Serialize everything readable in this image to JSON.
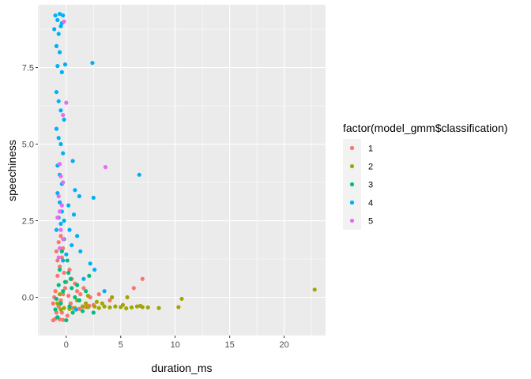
{
  "chart_data": {
    "type": "scatter",
    "title": "",
    "xlabel": "duration_ms",
    "ylabel": "speechiness",
    "xlim": [
      -2.6,
      23.8
    ],
    "ylim": [
      -1.25,
      9.55
    ],
    "xticks": [
      0,
      5,
      10,
      15,
      20
    ],
    "xtick_labels": [
      "0",
      "5",
      "10",
      "15",
      "20"
    ],
    "yticks": [
      0.0,
      2.5,
      5.0,
      7.5
    ],
    "ytick_labels": [
      "0.0",
      "2.5",
      "5.0",
      "7.5"
    ],
    "grid": true,
    "background": "#ebebeb",
    "legend": {
      "title": "factor(model_gmm$classification)",
      "position": "right"
    },
    "series": [
      {
        "name": "1",
        "color": "#F8766D",
        "points": [
          [
            -1.2,
            -0.75
          ],
          [
            -1.0,
            -0.7
          ],
          [
            -0.6,
            -0.72
          ],
          [
            -0.3,
            -0.74
          ],
          [
            -0.9,
            -0.5
          ],
          [
            -0.7,
            -0.3
          ],
          [
            -0.5,
            -0.1
          ],
          [
            -0.3,
            0.1
          ],
          [
            -0.1,
            0.3
          ],
          [
            0.2,
            0.05
          ],
          [
            0.4,
            -0.2
          ],
          [
            0.6,
            -0.35
          ],
          [
            0.9,
            -0.4
          ],
          [
            1.2,
            -0.38
          ],
          [
            1.5,
            -0.3
          ],
          [
            1.8,
            -0.32
          ],
          [
            2.1,
            -0.28
          ],
          [
            2.5,
            -0.25
          ],
          [
            0.5,
            0.6
          ],
          [
            0.8,
            0.45
          ],
          [
            1.0,
            0.2
          ],
          [
            1.3,
            0.1
          ],
          [
            -0.8,
            0.7
          ],
          [
            -0.6,
            1.0
          ],
          [
            -0.4,
            1.3
          ],
          [
            -0.9,
            1.5
          ],
          [
            -0.7,
            1.8
          ],
          [
            -0.5,
            2.0
          ],
          [
            -0.3,
            1.6
          ],
          [
            -0.8,
            1.2
          ],
          [
            -0.2,
            0.8
          ],
          [
            0.0,
            0.5
          ],
          [
            0.3,
            0.9
          ],
          [
            -1.0,
            0.2
          ],
          [
            -1.1,
            0.0
          ],
          [
            -1.2,
            -0.2
          ],
          [
            6.2,
            0.3
          ],
          [
            7.0,
            0.6
          ],
          [
            3.0,
            0.1
          ],
          [
            4.0,
            -0.1
          ],
          [
            1.6,
            0.3
          ],
          [
            2.2,
            0.0
          ],
          [
            -0.4,
            -0.5
          ],
          [
            0.1,
            -0.6
          ]
        ]
      },
      {
        "name": "2",
        "color": "#A3A500",
        "points": [
          [
            -0.5,
            -0.4
          ],
          [
            -0.2,
            -0.35
          ],
          [
            0.3,
            -0.38
          ],
          [
            0.8,
            -0.35
          ],
          [
            1.5,
            -0.3
          ],
          [
            2.0,
            -0.32
          ],
          [
            2.6,
            -0.3
          ],
          [
            3.0,
            -0.35
          ],
          [
            3.5,
            -0.3
          ],
          [
            4.0,
            -0.33
          ],
          [
            4.5,
            -0.3
          ],
          [
            5.0,
            -0.32
          ],
          [
            5.5,
            -0.36
          ],
          [
            6.0,
            -0.33
          ],
          [
            6.5,
            -0.3
          ],
          [
            7.0,
            -0.32
          ],
          [
            7.5,
            -0.33
          ],
          [
            8.5,
            -0.35
          ],
          [
            10.3,
            -0.32
          ],
          [
            10.6,
            -0.05
          ],
          [
            22.8,
            0.25
          ],
          [
            5.6,
            0.0
          ],
          [
            4.2,
            0.0
          ],
          [
            2.0,
            0.05
          ],
          [
            1.0,
            -0.1
          ],
          [
            -0.8,
            -0.2
          ],
          [
            -0.6,
            0.1
          ],
          [
            3.3,
            -0.2
          ],
          [
            2.8,
            -0.15
          ],
          [
            1.8,
            -0.2
          ],
          [
            6.8,
            -0.28
          ],
          [
            5.2,
            -0.25
          ]
        ]
      },
      {
        "name": "3",
        "color": "#00BF7D",
        "points": [
          [
            -0.8,
            -0.65
          ],
          [
            0.0,
            -0.75
          ],
          [
            -0.5,
            -0.2
          ],
          [
            -0.3,
            0.2
          ],
          [
            -0.1,
            0.5
          ],
          [
            0.2,
            0.8
          ],
          [
            0.5,
            0.3
          ],
          [
            0.8,
            0.0
          ],
          [
            1.2,
            -0.1
          ],
          [
            -0.6,
            0.9
          ],
          [
            -0.4,
            1.5
          ],
          [
            -0.2,
            1.9
          ],
          [
            0.1,
            1.2
          ],
          [
            0.4,
            0.6
          ],
          [
            1.0,
            0.4
          ],
          [
            -0.7,
            0.4
          ],
          [
            0.6,
            -0.5
          ],
          [
            1.5,
            -0.45
          ],
          [
            2.5,
            -0.5
          ],
          [
            1.8,
            0.2
          ],
          [
            2.1,
            0.7
          ],
          [
            -1.0,
            -0.4
          ],
          [
            -0.9,
            -0.05
          ],
          [
            0.3,
            -0.3
          ]
        ]
      },
      {
        "name": "4",
        "color": "#00B0F6",
        "points": [
          [
            -1.0,
            9.2
          ],
          [
            -0.6,
            9.25
          ],
          [
            -0.3,
            9.2
          ],
          [
            -0.8,
            9.05
          ],
          [
            -0.4,
            8.95
          ],
          [
            -1.1,
            8.75
          ],
          [
            -0.7,
            8.6
          ],
          [
            -0.5,
            8.85
          ],
          [
            -0.9,
            8.2
          ],
          [
            -0.6,
            8.0
          ],
          [
            -0.8,
            7.55
          ],
          [
            -0.4,
            7.35
          ],
          [
            -0.1,
            7.6
          ],
          [
            2.4,
            7.65
          ],
          [
            -0.9,
            6.7
          ],
          [
            -0.7,
            6.4
          ],
          [
            -0.5,
            6.1
          ],
          [
            -0.2,
            5.8
          ],
          [
            -0.9,
            5.5
          ],
          [
            -0.7,
            5.2
          ],
          [
            -0.5,
            5.0
          ],
          [
            -0.3,
            4.7
          ],
          [
            -0.8,
            4.3
          ],
          [
            -0.6,
            4.0
          ],
          [
            -0.4,
            3.7
          ],
          [
            0.6,
            4.45
          ],
          [
            0.8,
            3.5
          ],
          [
            1.2,
            3.3
          ],
          [
            2.5,
            3.25
          ],
          [
            6.7,
            4.0
          ],
          [
            -0.8,
            3.4
          ],
          [
            -0.6,
            3.1
          ],
          [
            -0.4,
            2.8
          ],
          [
            -0.2,
            2.5
          ],
          [
            0.3,
            2.2
          ],
          [
            0.7,
            2.7
          ],
          [
            1.0,
            2.0
          ],
          [
            1.3,
            1.5
          ],
          [
            0.5,
            1.7
          ],
          [
            -0.9,
            2.2
          ],
          [
            -0.7,
            2.6
          ],
          [
            2.2,
            1.1
          ],
          [
            2.6,
            0.9
          ],
          [
            3.5,
            0.2
          ],
          [
            0.9,
            -0.4
          ],
          [
            0.0,
            1.4
          ],
          [
            -0.3,
            1.2
          ],
          [
            1.6,
            0.6
          ],
          [
            -0.5,
            2.4
          ],
          [
            0.2,
            3.0
          ]
        ]
      },
      {
        "name": "5",
        "color": "#E76BF3",
        "points": [
          [
            -0.2,
            9.0
          ],
          [
            0.0,
            6.35
          ],
          [
            -0.3,
            5.95
          ],
          [
            -0.6,
            4.35
          ],
          [
            3.6,
            4.25
          ],
          [
            -0.5,
            3.95
          ],
          [
            -0.3,
            3.75
          ],
          [
            -0.7,
            3.3
          ],
          [
            -0.4,
            3.0
          ],
          [
            -0.6,
            2.8
          ],
          [
            -0.8,
            2.6
          ],
          [
            -0.5,
            2.2
          ],
          [
            -0.3,
            1.9
          ],
          [
            -0.6,
            1.6
          ],
          [
            -0.7,
            1.3
          ]
        ]
      }
    ]
  }
}
